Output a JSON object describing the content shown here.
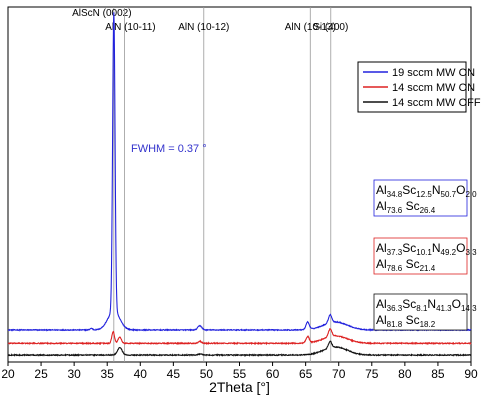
{
  "chart_data": {
    "type": "line",
    "xlabel": "2Theta [°]",
    "ylabel": "",
    "xlim": [
      20,
      90
    ],
    "xticks": [
      "20",
      "25",
      "30",
      "35",
      "40",
      "45",
      "50",
      "55",
      "60",
      "65",
      "70",
      "75",
      "80",
      "85",
      "90"
    ],
    "grid": false,
    "legend_position": "top-right",
    "reference_lines": [
      {
        "label": "AlScN (0002)",
        "x": 36.0
      },
      {
        "label": "AlN (10-11)",
        "x": 37.6
      },
      {
        "label": "AlN (10-12)",
        "x": 49.6
      },
      {
        "label": "AlN (10-13)",
        "x": 65.7
      },
      {
        "label": "Si (400)",
        "x": 68.8
      }
    ],
    "annotation": {
      "text": "FWHM = 0.37 °",
      "color": "#3333cc"
    },
    "series": [
      {
        "name": "19 sccm MW ON",
        "color": "#2222dd",
        "baseline": 0.55,
        "noise": 0.008,
        "peaks": [
          {
            "x": 36.0,
            "h": 5.6,
            "w": 0.18
          },
          {
            "x": 36.0,
            "h": 0.35,
            "w": 0.9
          },
          {
            "x": 32.6,
            "h": 0.03,
            "w": 0.2
          },
          {
            "x": 49.0,
            "h": 0.08,
            "w": 0.3
          },
          {
            "x": 65.3,
            "h": 0.14,
            "w": 0.25
          },
          {
            "x": 68.7,
            "h": 0.15,
            "w": 0.25
          },
          {
            "x": 69.5,
            "h": 0.15,
            "w": 1.8
          }
        ],
        "composition_line1": {
          "parts": [
            {
              "t": "Al",
              "sub": false
            },
            {
              "t": "34.8",
              "sub": true
            },
            {
              "t": "Sc",
              "sub": false
            },
            {
              "t": "12.5",
              "sub": true
            },
            {
              "t": "N",
              "sub": false
            },
            {
              "t": "50.7",
              "sub": true
            },
            {
              "t": "O",
              "sub": false
            },
            {
              "t": "2.0",
              "sub": true
            }
          ]
        },
        "composition_line2": {
          "parts": [
            {
              "t": "Al",
              "sub": false
            },
            {
              "t": "73.6",
              "sub": true
            },
            {
              "t": " Sc",
              "sub": false
            },
            {
              "t": "26.4",
              "sub": true
            }
          ]
        }
      },
      {
        "name": "14 sccm MW ON",
        "color": "#dd2222",
        "baseline": 0.3,
        "noise": 0.009,
        "peaks": [
          {
            "x": 35.9,
            "h": 0.22,
            "w": 0.2
          },
          {
            "x": 36.9,
            "h": 0.12,
            "w": 0.25
          },
          {
            "x": 49.0,
            "h": 0.04,
            "w": 0.25
          },
          {
            "x": 65.3,
            "h": 0.12,
            "w": 0.25
          },
          {
            "x": 68.7,
            "h": 0.14,
            "w": 0.25
          },
          {
            "x": 69.5,
            "h": 0.14,
            "w": 1.8
          }
        ],
        "composition_line1": {
          "parts": [
            {
              "t": "Al",
              "sub": false
            },
            {
              "t": "37.3",
              "sub": true
            },
            {
              "t": "Sc",
              "sub": false
            },
            {
              "t": "10.1",
              "sub": true
            },
            {
              "t": "N",
              "sub": false
            },
            {
              "t": "49.2",
              "sub": true
            },
            {
              "t": "O",
              "sub": false
            },
            {
              "t": "3.3",
              "sub": true
            }
          ]
        },
        "composition_line2": {
          "parts": [
            {
              "t": "Al",
              "sub": false
            },
            {
              "t": "78.6",
              "sub": true
            },
            {
              "t": " Sc",
              "sub": false
            },
            {
              "t": "21.4",
              "sub": true
            }
          ]
        }
      },
      {
        "name": "14 sccm MW OFF",
        "color": "#111111",
        "baseline": 0.08,
        "noise": 0.009,
        "peaks": [
          {
            "x": 36.9,
            "h": 0.14,
            "w": 0.35
          },
          {
            "x": 68.7,
            "h": 0.12,
            "w": 0.25
          },
          {
            "x": 69.5,
            "h": 0.15,
            "w": 1.8
          },
          {
            "x": 49.0,
            "h": 0.02,
            "w": 0.3
          }
        ],
        "composition_line1": {
          "parts": [
            {
              "t": "Al",
              "sub": false
            },
            {
              "t": "36.3",
              "sub": true
            },
            {
              "t": "Sc",
              "sub": false
            },
            {
              "t": "8.1",
              "sub": true
            },
            {
              "t": "N",
              "sub": false
            },
            {
              "t": "41.3",
              "sub": true
            },
            {
              "t": "O",
              "sub": false
            },
            {
              "t": "14.3",
              "sub": true
            }
          ]
        },
        "composition_line2": {
          "parts": [
            {
              "t": "Al",
              "sub": false
            },
            {
              "t": "81.8",
              "sub": true
            },
            {
              "t": " Sc",
              "sub": false
            },
            {
              "t": "18.2",
              "sub": true
            }
          ]
        }
      }
    ]
  }
}
